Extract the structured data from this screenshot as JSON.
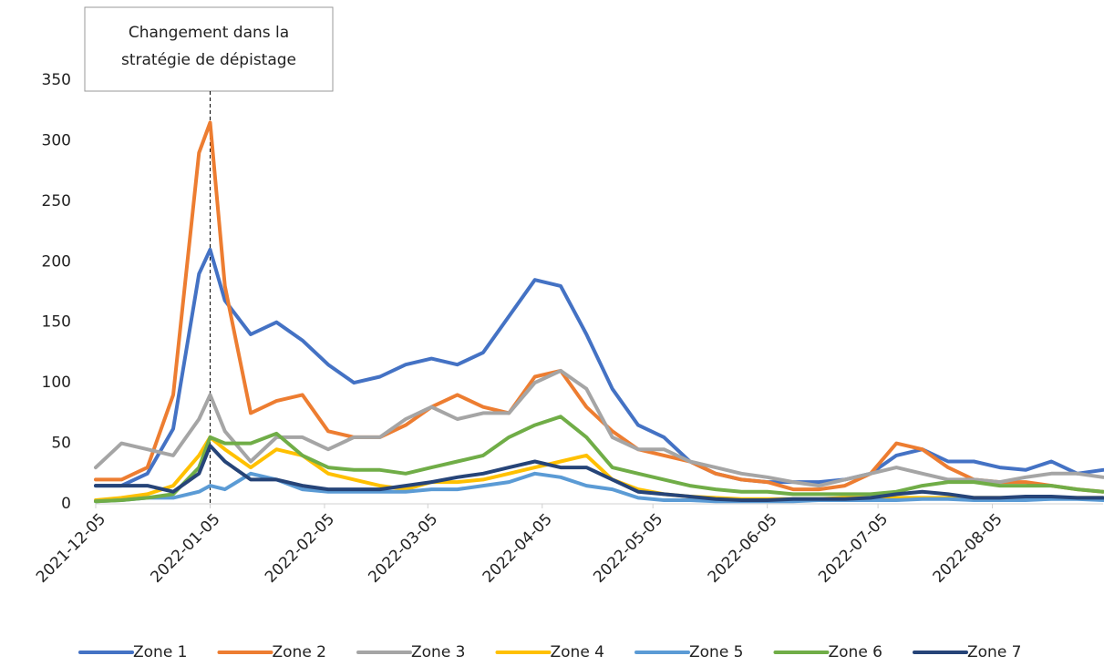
{
  "chart_data": {
    "type": "line",
    "annotation": {
      "text": [
        "Changement dans la",
        "stratégie de dépistage"
      ],
      "x": "2022-01-05"
    },
    "x": [
      "2021-12-05",
      "2021-12-12",
      "2021-12-19",
      "2021-12-26",
      "2022-01-02",
      "2022-01-05",
      "2022-01-09",
      "2022-01-16",
      "2022-01-23",
      "2022-01-30",
      "2022-02-06",
      "2022-02-13",
      "2022-02-20",
      "2022-02-27",
      "2022-03-06",
      "2022-03-13",
      "2022-03-20",
      "2022-03-27",
      "2022-04-03",
      "2022-04-10",
      "2022-04-17",
      "2022-04-24",
      "2022-05-01",
      "2022-05-08",
      "2022-05-15",
      "2022-05-22",
      "2022-05-29",
      "2022-06-05",
      "2022-06-12",
      "2022-06-19",
      "2022-06-26",
      "2022-07-03",
      "2022-07-10",
      "2022-07-17",
      "2022-07-24",
      "2022-07-31",
      "2022-08-07",
      "2022-08-14",
      "2022-08-21",
      "2022-08-28",
      "2022-09-04"
    ],
    "xlim": [
      "2021-12-05",
      "2022-09-04"
    ],
    "xticks": [
      "2021-12-05",
      "2022-01-05",
      "2022-02-05",
      "2022-03-05",
      "2022-04-05",
      "2022-05-05",
      "2022-06-05",
      "2022-07-05",
      "2022-08-05"
    ],
    "ylim": [
      0,
      350
    ],
    "yticks": [
      0,
      50,
      100,
      150,
      200,
      250,
      300,
      350
    ],
    "grid": false,
    "legend": "bottom",
    "series": [
      {
        "name": "Zone 1",
        "color": "#4472c4",
        "values": [
          15,
          15,
          25,
          62,
          190,
          210,
          168,
          140,
          150,
          135,
          115,
          100,
          105,
          115,
          120,
          115,
          125,
          155,
          185,
          180,
          140,
          95,
          65,
          55,
          35,
          25,
          20,
          18,
          18,
          18,
          20,
          25,
          40,
          45,
          35,
          35,
          30,
          28,
          35,
          25,
          28
        ]
      },
      {
        "name": "Zone 2",
        "color": "#ed7d31",
        "values": [
          20,
          20,
          30,
          90,
          290,
          315,
          180,
          75,
          85,
          90,
          60,
          55,
          55,
          65,
          80,
          90,
          80,
          75,
          105,
          110,
          80,
          60,
          45,
          40,
          35,
          25,
          20,
          18,
          12,
          12,
          15,
          25,
          50,
          45,
          30,
          20,
          18,
          18,
          15,
          12,
          10
        ]
      },
      {
        "name": "Zone 3",
        "color": "#a5a5a5",
        "values": [
          30,
          50,
          45,
          40,
          70,
          90,
          60,
          35,
          55,
          55,
          45,
          55,
          55,
          70,
          80,
          70,
          75,
          75,
          100,
          110,
          95,
          55,
          45,
          45,
          35,
          30,
          25,
          22,
          18,
          15,
          20,
          25,
          30,
          25,
          20,
          20,
          18,
          22,
          25,
          25,
          22
        ]
      },
      {
        "name": "Zone 4",
        "color": "#ffc000",
        "values": [
          3,
          5,
          8,
          15,
          40,
          55,
          45,
          30,
          45,
          40,
          25,
          20,
          15,
          12,
          18,
          18,
          20,
          25,
          30,
          35,
          40,
          20,
          12,
          8,
          6,
          5,
          4,
          4,
          4,
          4,
          5,
          5,
          5,
          5,
          5,
          5,
          5,
          5,
          5,
          5,
          5
        ]
      },
      {
        "name": "Zone 5",
        "color": "#5b9bd5",
        "values": [
          2,
          3,
          5,
          5,
          10,
          15,
          12,
          25,
          20,
          12,
          10,
          10,
          10,
          10,
          12,
          12,
          15,
          18,
          25,
          22,
          15,
          12,
          5,
          3,
          3,
          2,
          2,
          2,
          2,
          3,
          3,
          3,
          3,
          4,
          4,
          3,
          3,
          3,
          4,
          4,
          3
        ]
      },
      {
        "name": "Zone 6",
        "color": "#70ad47",
        "values": [
          2,
          3,
          5,
          8,
          30,
          55,
          50,
          50,
          58,
          40,
          30,
          28,
          28,
          25,
          30,
          35,
          40,
          55,
          65,
          72,
          55,
          30,
          25,
          20,
          15,
          12,
          10,
          10,
          8,
          8,
          8,
          8,
          10,
          15,
          18,
          18,
          15,
          15,
          15,
          12,
          10
        ]
      },
      {
        "name": "Zone 7",
        "color": "#264478",
        "values": [
          15,
          15,
          15,
          10,
          25,
          48,
          35,
          20,
          20,
          15,
          12,
          12,
          12,
          15,
          18,
          22,
          25,
          30,
          35,
          30,
          30,
          20,
          10,
          8,
          6,
          4,
          3,
          3,
          4,
          4,
          4,
          5,
          8,
          10,
          8,
          5,
          5,
          6,
          6,
          5,
          5
        ]
      }
    ]
  }
}
